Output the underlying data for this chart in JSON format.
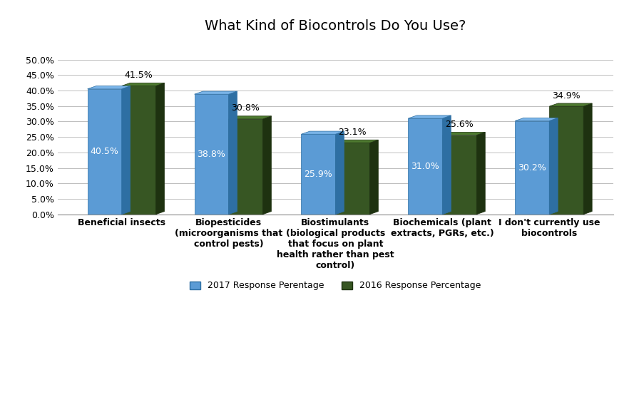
{
  "title": "What Kind of Biocontrols Do You Use?",
  "categories": [
    "Beneficial insects",
    "Biopesticides\n(microorganisms that\ncontrol pests)",
    "Biostimulants\n(biological products\nthat focus on plant\nhealth rather than pest\ncontrol)",
    "Biochemicals (plant\nextracts, PGRs, etc.)",
    "I don't currently use\nbiocontrols"
  ],
  "series": [
    {
      "name": "2017 Response Perentage",
      "values": [
        40.5,
        38.8,
        25.9,
        31.0,
        30.2
      ],
      "color": "#5B9BD5",
      "dark_color": "#2E6FA3",
      "top_color": "#7AB4E8",
      "label_color": "#FFFFFF"
    },
    {
      "name": "2016 Response Percentage",
      "values": [
        41.5,
        30.8,
        23.1,
        25.6,
        34.9
      ],
      "color": "#375623",
      "dark_color": "#1E3210",
      "top_color": "#4E7A30",
      "label_color": "#000000"
    }
  ],
  "ylim": [
    0,
    50
  ],
  "yticks": [
    0,
    5,
    10,
    15,
    20,
    25,
    30,
    35,
    40,
    45,
    50
  ],
  "yticklabels": [
    "0.0%",
    "5.0%",
    "10.0%",
    "15.0%",
    "20.0%",
    "25.0%",
    "30.0%",
    "35.0%",
    "40.0%",
    "45.0%",
    "50.0%"
  ],
  "background_color": "#FFFFFF",
  "plot_bg_color": "#FFFFFF",
  "grid_color": "#C0C0C0",
  "bar_width": 0.32,
  "depth": 0.08,
  "title_fontsize": 14,
  "tick_fontsize": 9,
  "label_fontsize": 9,
  "legend_fontsize": 9,
  "value_label_fontsize": 9
}
